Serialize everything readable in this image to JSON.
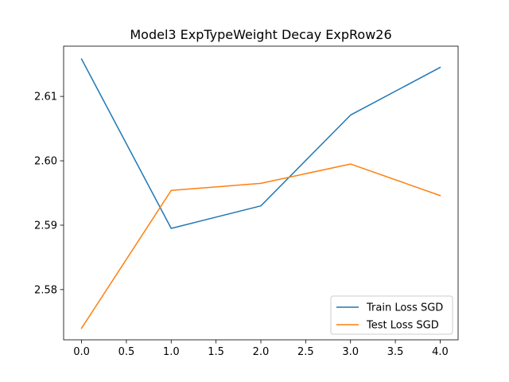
{
  "chart_data": {
    "type": "line",
    "title": "Model3 ExpTypeWeight Decay ExpRow26",
    "xlabel": "",
    "ylabel": "",
    "x": [
      0,
      1,
      2,
      3,
      4
    ],
    "xlim": [
      -0.2,
      4.2
    ],
    "ylim": [
      2.5722,
      2.6178
    ],
    "xticks": [
      0.0,
      0.5,
      1.0,
      1.5,
      2.0,
      2.5,
      3.0,
      3.5,
      4.0
    ],
    "xtick_labels": [
      "0.0",
      "0.5",
      "1.0",
      "1.5",
      "2.0",
      "2.5",
      "3.0",
      "3.5",
      "4.0"
    ],
    "yticks": [
      2.58,
      2.59,
      2.6,
      2.61
    ],
    "ytick_labels": [
      "2.58",
      "2.59",
      "2.60",
      "2.61"
    ],
    "grid": false,
    "legend_position": "lower-right",
    "series": [
      {
        "name": "Train Loss SGD",
        "color": "#1f77b4",
        "values": [
          2.6158,
          2.5895,
          2.593,
          2.6071,
          2.6145
        ]
      },
      {
        "name": "Test Loss SGD",
        "color": "#ff7f0e",
        "values": [
          2.574,
          2.5954,
          2.5965,
          2.5995,
          2.5946
        ]
      }
    ]
  }
}
